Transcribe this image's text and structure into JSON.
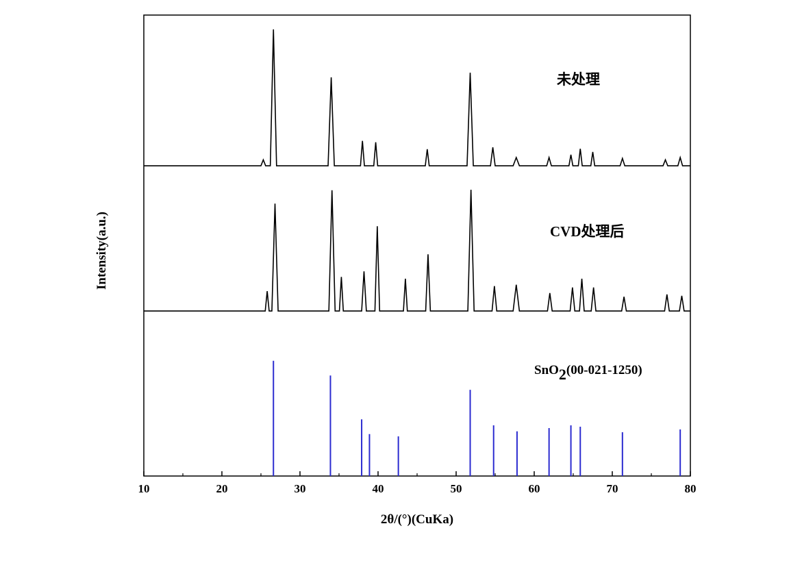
{
  "chart_data": {
    "type": "line",
    "x_label": "2θ/(°)(CuKa)",
    "y_label": "Intensity(a.u.)",
    "xlim": [
      10,
      80
    ],
    "xticks": [
      10,
      20,
      30,
      40,
      50,
      60,
      70,
      80
    ],
    "xminorticks": [
      15,
      25,
      35,
      45,
      55,
      65,
      75
    ],
    "ylim": [
      0,
      100
    ],
    "annotations": [
      {
        "text": "未处理"
      },
      {
        "text": "CVD处理后"
      },
      {
        "text": [
          "SnO",
          "2",
          "(00-021-1250)"
        ]
      }
    ],
    "series": [
      {
        "type": "line",
        "color": "#000000",
        "x": [
          10,
          25.0,
          25.3,
          25.6,
          26.2,
          26.6,
          27.0,
          33.6,
          34.0,
          34.4,
          37.75,
          38.0,
          38.25,
          39.45,
          39.7,
          39.95,
          46.05,
          46.3,
          46.55,
          51.4,
          51.8,
          52.2,
          54.4,
          54.7,
          55.0,
          57.3,
          57.7,
          58.1,
          61.6,
          61.9,
          62.2,
          64.45,
          64.7,
          64.95,
          65.65,
          65.9,
          66.15,
          67.25,
          67.5,
          67.75,
          71.0,
          71.3,
          71.6,
          76.5,
          76.8,
          77.1,
          78.4,
          78.7,
          79.0,
          80
        ],
        "values": [
          67.3,
          67.3,
          68.6,
          67.3,
          67.3,
          96.9,
          67.3,
          67.3,
          86.5,
          67.3,
          67.3,
          72.7,
          67.3,
          67.3,
          72.4,
          67.3,
          67.3,
          70.9,
          67.3,
          67.3,
          87.5,
          67.3,
          67.3,
          71.3,
          67.3,
          67.3,
          69.1,
          67.3,
          67.3,
          69.1,
          67.3,
          67.3,
          69.7,
          67.3,
          67.3,
          71.0,
          67.3,
          67.3,
          70.3,
          67.3,
          67.3,
          68.9,
          67.3,
          67.3,
          68.6,
          67.3,
          67.3,
          69.1,
          67.3,
          67.3
        ]
      },
      {
        "type": "line",
        "color": "#000000",
        "x": [
          10,
          25.55,
          25.8,
          26.05,
          26.4,
          26.8,
          27.2,
          33.7,
          34.1,
          34.5,
          35.05,
          35.3,
          35.55,
          37.9,
          38.2,
          38.5,
          39.6,
          39.9,
          40.2,
          43.25,
          43.5,
          43.75,
          46.1,
          46.4,
          46.7,
          51.5,
          51.9,
          52.3,
          54.6,
          54.9,
          55.2,
          57.3,
          57.7,
          58.1,
          61.7,
          62.0,
          62.3,
          64.6,
          64.9,
          65.2,
          65.8,
          66.1,
          66.4,
          67.3,
          67.6,
          67.9,
          71.2,
          71.5,
          71.8,
          76.7,
          77.0,
          77.3,
          78.6,
          78.9,
          79.2,
          80
        ],
        "values": [
          35.8,
          35.8,
          40.1,
          35.8,
          35.8,
          59.1,
          35.8,
          35.8,
          62.0,
          35.8,
          35.8,
          43.2,
          35.8,
          35.8,
          44.4,
          35.8,
          35.8,
          54.2,
          35.8,
          35.8,
          42.8,
          35.8,
          35.8,
          48.1,
          35.8,
          35.8,
          62.1,
          35.8,
          35.8,
          41.2,
          35.8,
          35.8,
          41.5,
          35.8,
          35.8,
          39.7,
          35.8,
          35.8,
          40.9,
          35.8,
          35.8,
          42.8,
          35.8,
          35.8,
          40.9,
          35.8,
          35.8,
          38.9,
          35.8,
          35.8,
          39.4,
          35.8,
          35.8,
          39.1,
          35.8,
          35.8
        ]
      },
      {
        "type": "stem",
        "color": "#2b2bd0",
        "x": [
          26.6,
          33.9,
          37.9,
          38.9,
          42.6,
          51.8,
          54.8,
          57.8,
          61.9,
          64.7,
          65.9,
          71.3,
          78.7
        ],
        "values": [
          25.0,
          21.8,
          12.3,
          9.1,
          8.6,
          18.7,
          11.0,
          9.7,
          10.4,
          11.0,
          10.7,
          9.5,
          10.1
        ]
      }
    ]
  }
}
